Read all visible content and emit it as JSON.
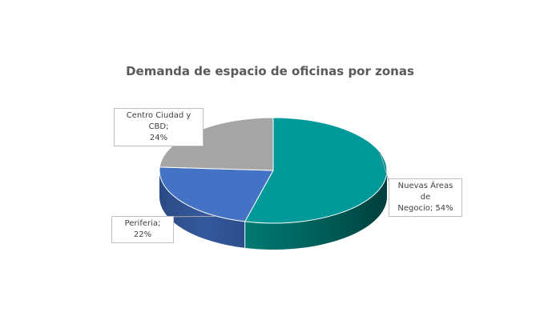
{
  "chart_data": {
    "type": "pie",
    "title": "Demanda de espacio de oficinas por zonas",
    "slices": [
      {
        "label": "Nuevas Áreas de Negocio",
        "value": 54,
        "label_lines": [
          "Nuevas Áreas de",
          "Negocio; 54%"
        ],
        "color": "#009999"
      },
      {
        "label": "Periferia",
        "value": 22,
        "label_lines": [
          "Periferia; 22%"
        ],
        "color": "#4472c4"
      },
      {
        "label": "Centro Ciudad y CBD",
        "value": 24,
        "label_lines": [
          "Centro Ciudad y CBD;",
          "24%"
        ],
        "color": "#a5a5a5"
      }
    ],
    "start_angle_deg": 0,
    "direction": "clockwise",
    "style": "3d",
    "legend": "none"
  }
}
